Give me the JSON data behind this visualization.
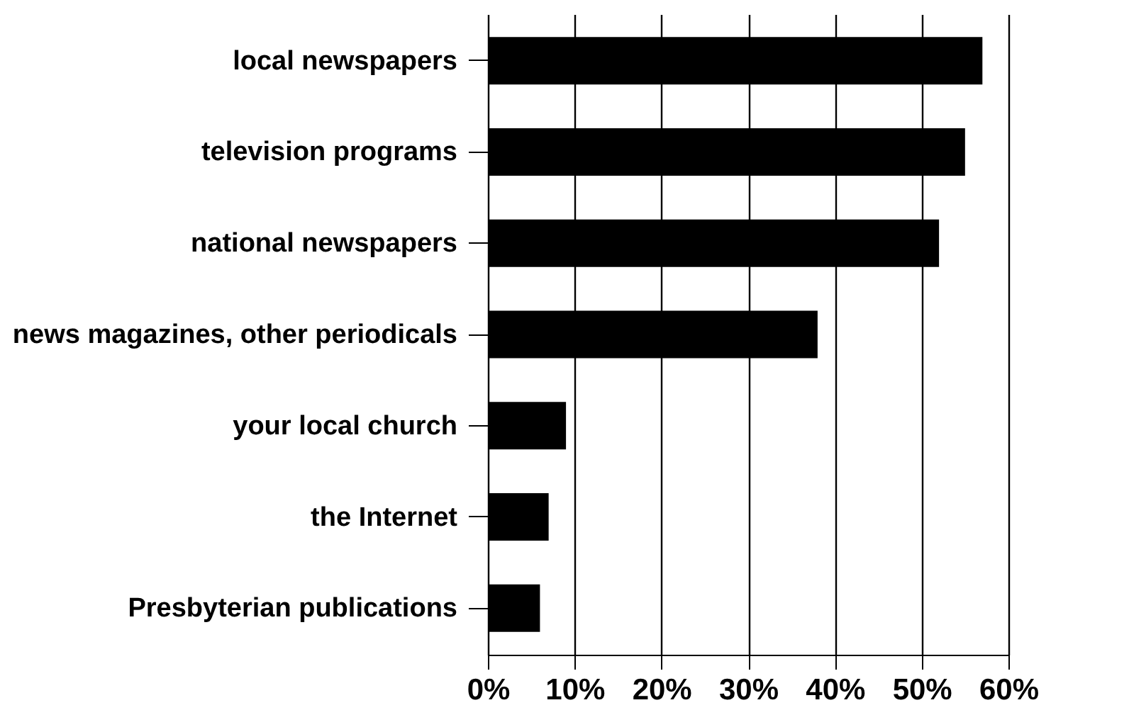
{
  "chart_data": {
    "type": "bar",
    "orientation": "horizontal",
    "categories": [
      "local newspapers",
      "television programs",
      "national newspapers",
      "news magazines, other periodicals",
      "your local church",
      "the Internet",
      "Presbyterian publications"
    ],
    "values": [
      57,
      55,
      52,
      38,
      9,
      7,
      6
    ],
    "color": "#000000",
    "xlim": [
      0,
      60
    ],
    "xticks": [
      {
        "value": 0,
        "label": "0%"
      },
      {
        "value": 10,
        "label": "10%"
      },
      {
        "value": 20,
        "label": "20%"
      },
      {
        "value": 30,
        "label": "30%"
      },
      {
        "value": 40,
        "label": "40%"
      },
      {
        "value": 50,
        "label": "50%"
      },
      {
        "value": 60,
        "label": "60%"
      }
    ],
    "grid": "x"
  }
}
